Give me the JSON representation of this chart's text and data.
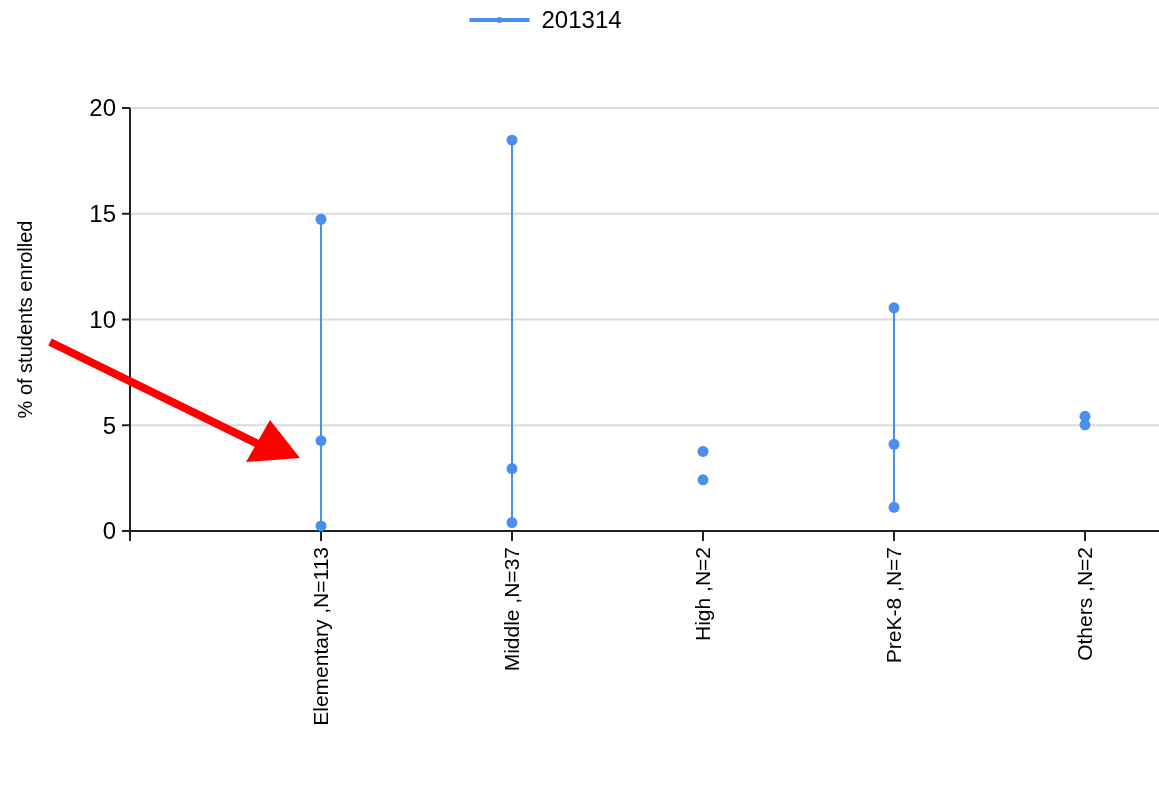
{
  "chart_data": {
    "type": "line",
    "ylabel": "% of students enrolled",
    "categories": [
      null,
      "Elementary ,N=113",
      "Middle ,N=37",
      "High ,N=2",
      "PreK-8 ,N=7",
      "Others ,N=2"
    ],
    "series": [
      {
        "name": "201314",
        "color": "#4a8ff0",
        "x": [
          "Elementary ,N=113",
          "Elementary ,N=113",
          "Elementary ,N=113",
          "Elementary ,N=113",
          "Middle ,N=37",
          "Middle ,N=37",
          "Middle ,N=37",
          "Middle ,N=37",
          "High ,N=2",
          "High ,N=2",
          "High ,N=2",
          "High ,N=2",
          "PreK-8 ,N=7",
          "PreK-8 ,N=7",
          "PreK-8 ,N=7",
          "PreK-8 ,N=7",
          "Others ,N=2",
          "Others ,N=2"
        ],
        "values": [
          0.24,
          4.27,
          14.74,
          null,
          0.4,
          2.95,
          18.48,
          null,
          2.42,
          null,
          3.76,
          null,
          1.12,
          4.1,
          10.55,
          null,
          5.02,
          5.42
        ]
      }
    ],
    "ylim": [
      0,
      20
    ],
    "yticks": [
      0,
      5,
      10,
      15,
      20
    ],
    "grid": "y",
    "legend": "top",
    "marker": "circle",
    "line_style": "solid"
  }
}
